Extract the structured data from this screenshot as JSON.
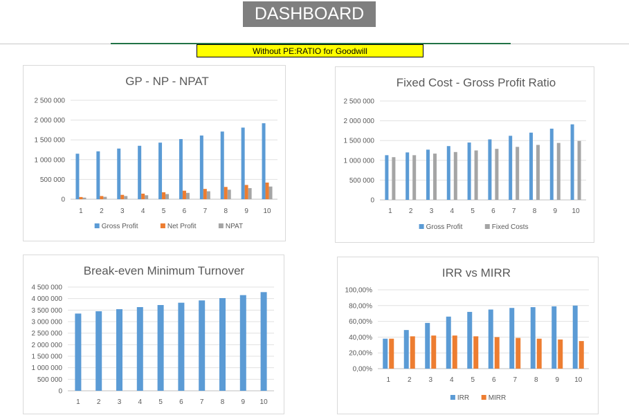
{
  "header": {
    "title": "DASHBOARD",
    "subtitle": "Without PE:RATIO for Goodwill"
  },
  "colors": {
    "blue": "#5b9bd5",
    "orange": "#ed7d31",
    "gray": "#a5a5a5",
    "title_bg": "#7f7f7f",
    "subtitle_bg": "#ffff00"
  },
  "chart_data": [
    {
      "type": "bar",
      "title": "GP - NP - NPAT",
      "categories": [
        "1",
        "2",
        "3",
        "4",
        "5",
        "6",
        "7",
        "8",
        "9",
        "10"
      ],
      "ylim": [
        0,
        2500000
      ],
      "yticks": [
        "0",
        "500 000",
        "1 000 000",
        "1 500 000",
        "2 000 000",
        "2 500 000"
      ],
      "grid": true,
      "legend_position": "bottom",
      "series": [
        {
          "name": "Gross Profit",
          "color": "#5b9bd5",
          "values": [
            1150000,
            1210000,
            1280000,
            1350000,
            1430000,
            1520000,
            1610000,
            1710000,
            1810000,
            1920000
          ]
        },
        {
          "name": "Net Profit",
          "color": "#ed7d31",
          "values": [
            55000,
            80000,
            110000,
            140000,
            175000,
            215000,
            260000,
            310000,
            360000,
            420000
          ]
        },
        {
          "name": "NPAT",
          "color": "#a5a5a5",
          "values": [
            40000,
            60000,
            80000,
            100000,
            130000,
            160000,
            200000,
            240000,
            280000,
            320000
          ]
        }
      ]
    },
    {
      "type": "bar",
      "title": "Fixed Cost - Gross Profit Ratio",
      "categories": [
        "1",
        "2",
        "3",
        "4",
        "5",
        "6",
        "7",
        "8",
        "9",
        "10"
      ],
      "ylim": [
        0,
        2500000
      ],
      "yticks": [
        "0",
        "500 000",
        "1 000 000",
        "1 500 000",
        "2 000 000",
        "2 500 000"
      ],
      "grid": true,
      "legend_position": "bottom",
      "legend_entries": [
        "Gross Profit",
        "Fixed Costs"
      ],
      "series": [
        {
          "name": "Gross Profit",
          "color": "#5b9bd5",
          "values": [
            1130000,
            1200000,
            1270000,
            1360000,
            1450000,
            1530000,
            1620000,
            1700000,
            1800000,
            1910000
          ]
        },
        {
          "name": "",
          "color": "#ed7d31",
          "values": [
            0,
            0,
            0,
            0,
            0,
            0,
            0,
            0,
            0,
            0
          ]
        },
        {
          "name": "Fixed Costs",
          "color": "#a5a5a5",
          "values": [
            1080000,
            1130000,
            1170000,
            1210000,
            1250000,
            1290000,
            1340000,
            1390000,
            1440000,
            1490000
          ]
        }
      ]
    },
    {
      "type": "bar",
      "title": "Break-even Minimum Turnover",
      "categories": [
        "1",
        "2",
        "3",
        "4",
        "5",
        "6",
        "7",
        "8",
        "9",
        "10"
      ],
      "ylim": [
        0,
        4500000
      ],
      "yticks": [
        "0",
        "500 000",
        "1 000 000",
        "1 500 000",
        "2 000 000",
        "2 500 000",
        "3 000 000",
        "3 500 000",
        "4 000 000",
        "4 500 000"
      ],
      "grid": true,
      "legend_position": "none",
      "series": [
        {
          "name": "",
          "color": "#5b9bd5",
          "values": [
            3350000,
            3450000,
            3540000,
            3630000,
            3720000,
            3820000,
            3920000,
            4020000,
            4150000,
            4280000
          ]
        }
      ]
    },
    {
      "type": "bar",
      "title": "IRR vs MIRR",
      "categories": [
        "1",
        "2",
        "3",
        "4",
        "5",
        "6",
        "7",
        "8",
        "9",
        "10"
      ],
      "ylim": [
        0,
        100
      ],
      "yticks": [
        "0,00%",
        "20,00%",
        "40,00%",
        "60,00%",
        "80,00%",
        "100,00%"
      ],
      "grid": true,
      "legend_position": "bottom",
      "series": [
        {
          "name": "IRR",
          "color": "#5b9bd5",
          "values": [
            38,
            49,
            58,
            66,
            72,
            75,
            77,
            78,
            79,
            80
          ]
        },
        {
          "name": "MIRR",
          "color": "#ed7d31",
          "values": [
            38,
            41,
            42,
            42,
            41,
            40,
            39,
            38,
            37,
            35
          ]
        }
      ]
    }
  ]
}
